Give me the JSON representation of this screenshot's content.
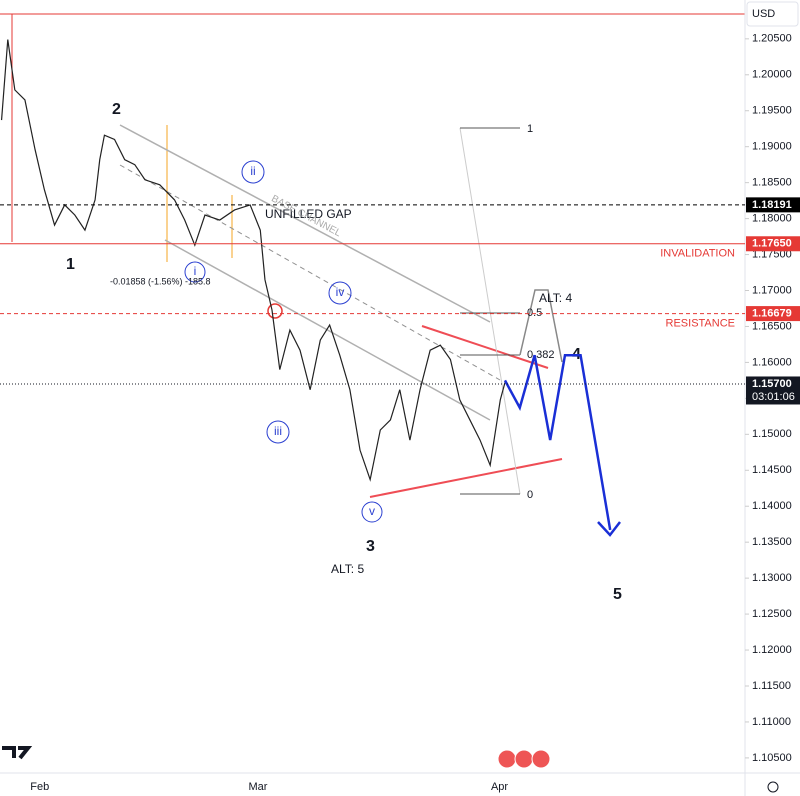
{
  "chart_data": {
    "type": "line",
    "currency": "USD",
    "xlim": [
      26.9,
      122.5
    ],
    "xticks": [
      {
        "value": 32,
        "label": "Feb"
      },
      {
        "value": 60,
        "label": "Mar"
      },
      {
        "value": 91,
        "label": "Apr"
      }
    ],
    "ylim": [
      1.1029,
      1.2104
    ],
    "yticks": [
      {
        "value": 1.105,
        "label": "1.10500"
      },
      {
        "value": 1.11,
        "label": "1.11000"
      },
      {
        "value": 1.115,
        "label": "1.11500"
      },
      {
        "value": 1.12,
        "label": "1.12000"
      },
      {
        "value": 1.125,
        "label": "1.12500"
      },
      {
        "value": 1.13,
        "label": "1.13000"
      },
      {
        "value": 1.135,
        "label": "1.13500"
      },
      {
        "value": 1.14,
        "label": "1.14000"
      },
      {
        "value": 1.145,
        "label": "1.14500"
      },
      {
        "value": 1.15,
        "label": "1.15000"
      },
      {
        "value": 1.155,
        "label": "1.15500"
      },
      {
        "value": 1.16,
        "label": "1.16000"
      },
      {
        "value": 1.165,
        "label": "1.16500"
      },
      {
        "value": 1.17,
        "label": "1.17000"
      },
      {
        "value": 1.175,
        "label": "1.17500"
      },
      {
        "value": 1.18,
        "label": "1.18000"
      },
      {
        "value": 1.185,
        "label": "1.18500"
      },
      {
        "value": 1.19,
        "label": "1.19000"
      },
      {
        "value": 1.195,
        "label": "1.19500"
      },
      {
        "value": 1.2,
        "label": "1.20000"
      },
      {
        "value": 1.205,
        "label": "1.20500"
      }
    ],
    "series": [
      {
        "color": "#222222",
        "x": [
          27.1,
          27.9,
          28.8,
          30.1,
          31.4,
          32.6,
          33.9,
          35.2,
          36.5,
          37.8,
          39.1,
          39.7,
          40.3,
          41.6,
          42.9,
          44.2,
          45.5,
          47.4,
          49.3,
          50.6,
          51.9,
          53.2,
          55.1,
          57.0,
          59.0,
          60.3,
          60.9,
          61.8,
          62.8,
          64.1,
          65.4,
          66.7,
          68.0,
          69.2,
          70.5,
          71.8,
          73.1,
          74.4,
          75.7,
          77.0,
          78.2,
          79.5,
          80.8,
          82.1,
          83.4,
          84.7,
          85.9,
          87.2,
          88.5,
          89.8,
          91.1,
          91.7
        ],
        "values": [
          1.1937,
          1.2049,
          1.1979,
          1.1965,
          1.1896,
          1.184,
          1.1791,
          1.1819,
          1.1805,
          1.1784,
          1.1826,
          1.1882,
          1.1916,
          1.191,
          1.1882,
          1.1875,
          1.1854,
          1.1847,
          1.1826,
          1.1798,
          1.1763,
          1.1805,
          1.1798,
          1.1812,
          1.1819,
          1.1784,
          1.1715,
          1.1673,
          1.159,
          1.1645,
          1.1617,
          1.1562,
          1.1631,
          1.1652,
          1.161,
          1.1562,
          1.1478,
          1.1437,
          1.1506,
          1.152,
          1.1562,
          1.1492,
          1.1562,
          1.1617,
          1.1624,
          1.1604,
          1.1548,
          1.152,
          1.1492,
          1.1457,
          1.1548,
          1.1572
        ]
      },
      {
        "color": "#1a2fd6",
        "x": [
          91.7,
          93.6,
          95.5,
          97.5,
          99.4,
          101.4,
          105.2
        ],
        "values": [
          1.1575,
          1.1537,
          1.161,
          1.1492,
          1.161,
          1.161,
          1.1367
        ]
      }
    ],
    "levels": [
      {
        "value": 1.18191,
        "label": "1.18191",
        "color": "#000000",
        "dash": "4,3"
      },
      {
        "value": 1.1765,
        "label": "1.17650",
        "color": "#e53935",
        "dash": "",
        "note": "INVALIDATION"
      },
      {
        "value": 1.16679,
        "label": "1.16679",
        "color": "#e53935",
        "dash": "4,3",
        "note": "RESISTANCE"
      },
      {
        "value": 1.157,
        "label": "1.15700",
        "color": "#131722",
        "dash": "1,2",
        "countdown": "03:01:06"
      }
    ],
    "waves": {
      "w1": "1",
      "w2": "2",
      "wi": "i",
      "wii": "ii",
      "wiii": "iii",
      "wiv": "iv",
      "wv": "v",
      "w3": "3",
      "w4": "4",
      "w5": "5",
      "alt5": "ALT: 5",
      "alt4": "ALT: 4"
    },
    "notes": {
      "gap": "UNFILLED GAP",
      "channel": "BASE CHANNEL",
      "measure": "-0.01858 (-1.56%) -185.8"
    },
    "fib": [
      1,
      0.5,
      0.382,
      0
    ]
  }
}
